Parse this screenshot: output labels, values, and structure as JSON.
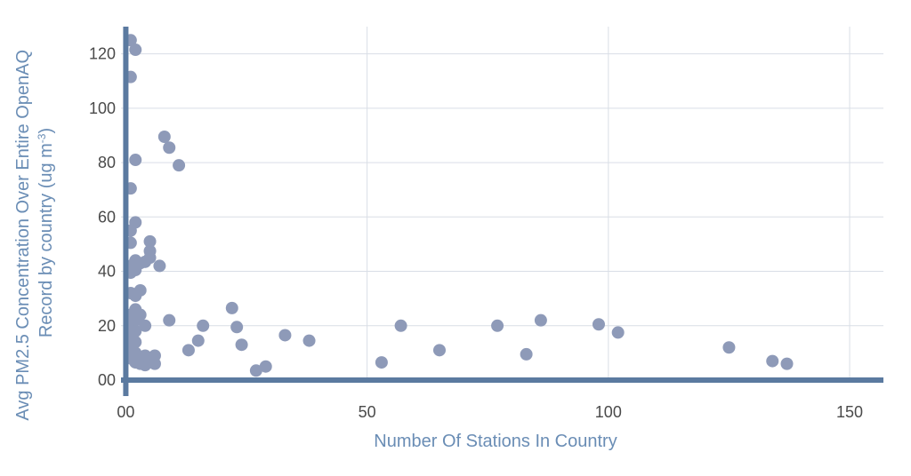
{
  "chart_data": {
    "type": "scatter",
    "title": "",
    "xlabel": "Number Of Stations In Country",
    "ylabel_line1": "Avg PM2.5 Concentration Over Entire OpenAQ",
    "ylabel_line2": "Record by country (ug m",
    "ylabel_superscript": "-3",
    "ylabel_suffix": ")",
    "xlim": [
      -1,
      157
    ],
    "ylim": [
      0,
      130
    ],
    "x_ticks": [
      0,
      50,
      100,
      150
    ],
    "x_tick_labels": [
      "00",
      "50",
      "100",
      "150"
    ],
    "y_ticks": [
      0,
      20,
      40,
      60,
      80,
      100,
      120
    ],
    "y_tick_labels": [
      "00",
      "20",
      "40",
      "60",
      "80",
      "100",
      "120"
    ],
    "grid": true,
    "colors": {
      "point": "#8e9ab8",
      "axis": "#5b7aa0",
      "grid": "#d9dee6",
      "tick_text": "#4a4a4a",
      "axis_title": "#6a8db5"
    },
    "points": [
      [
        1,
        125
      ],
      [
        2,
        121.5
      ],
      [
        1,
        111.5
      ],
      [
        2,
        81
      ],
      [
        1,
        70.5
      ],
      [
        2,
        58
      ],
      [
        1,
        55
      ],
      [
        1,
        50.5
      ],
      [
        1,
        39.5
      ],
      [
        2,
        44
      ],
      [
        2,
        42
      ],
      [
        2,
        40.5
      ],
      [
        1,
        42
      ],
      [
        3,
        43
      ],
      [
        4,
        43.5
      ],
      [
        5,
        51
      ],
      [
        5,
        47.5
      ],
      [
        5,
        45
      ],
      [
        7,
        42
      ],
      [
        8,
        89.5
      ],
      [
        9,
        85.5
      ],
      [
        11,
        79
      ],
      [
        3,
        33
      ],
      [
        1,
        32
      ],
      [
        2,
        31
      ],
      [
        2,
        26
      ],
      [
        1,
        24
      ],
      [
        3,
        24
      ],
      [
        2,
        22
      ],
      [
        1,
        20
      ],
      [
        2,
        18
      ],
      [
        1,
        16
      ],
      [
        2,
        14
      ],
      [
        1,
        12
      ],
      [
        2,
        10
      ],
      [
        1,
        8
      ],
      [
        2,
        6.5
      ],
      [
        3,
        6
      ],
      [
        4,
        5.5
      ],
      [
        4,
        9
      ],
      [
        5,
        7
      ],
      [
        6,
        9
      ],
      [
        6,
        6
      ],
      [
        4,
        20
      ],
      [
        9,
        22
      ],
      [
        13,
        11
      ],
      [
        15,
        14.5
      ],
      [
        16,
        20
      ],
      [
        22,
        26.5
      ],
      [
        23,
        19.5
      ],
      [
        24,
        13
      ],
      [
        27,
        3.5
      ],
      [
        29,
        5
      ],
      [
        33,
        16.5
      ],
      [
        38,
        14.5
      ],
      [
        53,
        6.5
      ],
      [
        57,
        20
      ],
      [
        65,
        11
      ],
      [
        77,
        20
      ],
      [
        83,
        9.5
      ],
      [
        86,
        22
      ],
      [
        98,
        20.5
      ],
      [
        102,
        17.5
      ],
      [
        125,
        12
      ],
      [
        134,
        7
      ],
      [
        137,
        6
      ]
    ]
  }
}
